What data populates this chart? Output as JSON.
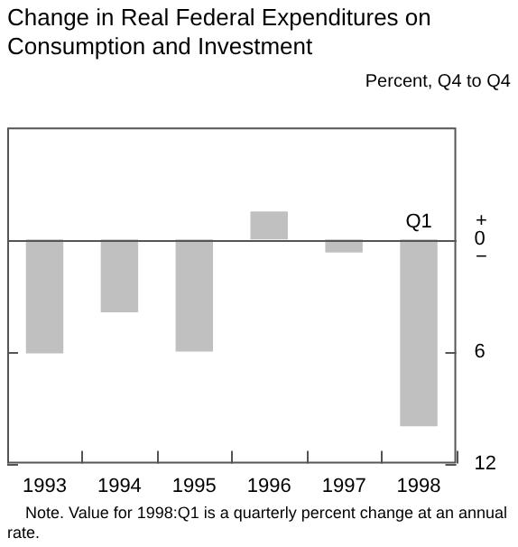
{
  "chart_data": {
    "type": "bar",
    "title": "Change in Real Federal Expenditures on Consumption and Investment",
    "ylabel": "Percent, Q4 to Q4",
    "categories": [
      "1993",
      "1994",
      "1995",
      "1996",
      "1997",
      "1998"
    ],
    "values": [
      -6.1,
      -3.9,
      -6.0,
      1.5,
      -0.7,
      -10.0
    ],
    "color": "#c0c0c0",
    "ylim": [
      -12,
      6
    ],
    "yticks": [
      {
        "value": 0,
        "label": "0"
      },
      {
        "value": -6,
        "label": "6"
      },
      {
        "value": -12,
        "label": "12"
      }
    ],
    "ref_lines": [
      {
        "axis": "y",
        "value": 0,
        "color": "#555555"
      }
    ],
    "annotations": [
      {
        "text": "Q1",
        "x": "1998",
        "y": 0
      },
      "+",
      "−",
      "Note. Value for 1998:Q1 is a quarterly percent change at an annual rate."
    ],
    "grid": false,
    "legend": false
  }
}
